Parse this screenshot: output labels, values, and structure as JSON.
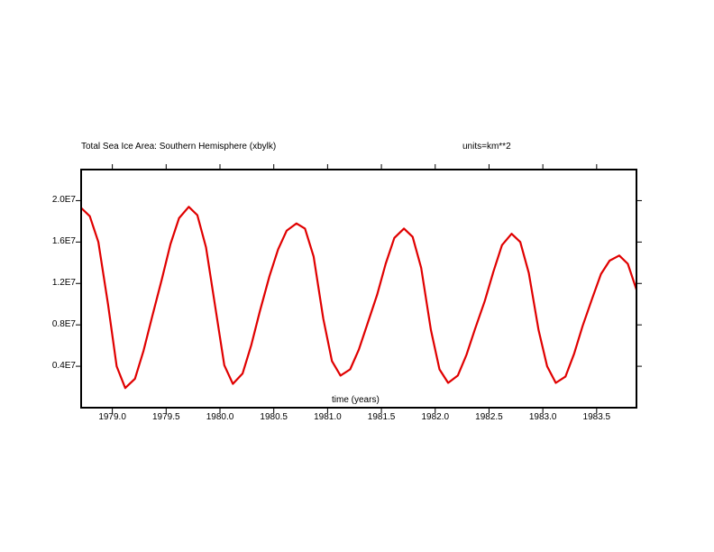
{
  "chart_data": {
    "type": "line",
    "title": "Total Sea Ice Area: Southern Hemisphere (xbylk)",
    "units_label": "units=km**2",
    "xlabel": "time (years)",
    "ylabel": "",
    "xlim": [
      1978.71,
      1983.87
    ],
    "ylim": [
      0.0,
      23000000.0
    ],
    "x_ticks": [
      1979.0,
      1979.5,
      1980.0,
      1980.5,
      1981.0,
      1981.5,
      1982.0,
      1982.5,
      1983.0,
      1983.5
    ],
    "x_tick_labels": [
      "1979.0",
      "1979.5",
      "1980.0",
      "1980.5",
      "1981.0",
      "1981.5",
      "1982.0",
      "1982.5",
      "1983.0",
      "1983.5"
    ],
    "y_ticks": [
      4000000,
      8000000,
      12000000,
      16000000,
      20000000
    ],
    "y_tick_labels": [
      "0.4E7",
      "0.8E7",
      "1.2E7",
      "1.6E7",
      "2.0E7"
    ],
    "grid": false,
    "line_color": "#e00000",
    "series": [
      {
        "x": [
          1978.71,
          1978.79,
          1978.87,
          1978.96,
          1979.04,
          1979.12,
          1979.21,
          1979.29,
          1979.37,
          1979.46,
          1979.54,
          1979.62,
          1979.71,
          1979.79,
          1979.87,
          1979.96,
          1980.04,
          1980.12,
          1980.21,
          1980.29,
          1980.37,
          1980.46,
          1980.54,
          1980.62,
          1980.71,
          1980.79,
          1980.87,
          1980.96,
          1981.04,
          1981.12,
          1981.21,
          1981.29,
          1981.37,
          1981.46,
          1981.54,
          1981.62,
          1981.71,
          1981.79,
          1981.87,
          1981.96,
          1982.04,
          1982.12,
          1982.21,
          1982.29,
          1982.37,
          1982.46,
          1982.54,
          1982.62,
          1982.71,
          1982.79,
          1982.87,
          1982.96,
          1983.04,
          1983.12,
          1983.21,
          1983.29,
          1983.37,
          1983.46,
          1983.54,
          1983.62,
          1983.71,
          1983.79,
          1983.87
        ],
        "y": [
          19300000,
          18500000,
          16000000,
          10000000,
          4000000,
          1900000,
          2800000,
          5500000,
          8800000,
          12400000,
          15800000,
          18300000,
          19400000,
          18600000,
          15500000,
          9500000,
          4100000,
          2300000,
          3300000,
          6000000,
          9300000,
          12700000,
          15300000,
          17100000,
          17800000,
          17300000,
          14600000,
          8600000,
          4500000,
          3100000,
          3700000,
          5600000,
          8100000,
          10900000,
          13900000,
          16400000,
          17300000,
          16500000,
          13500000,
          7500000,
          3700000,
          2400000,
          3100000,
          5100000,
          7600000,
          10300000,
          13100000,
          15700000,
          16800000,
          16000000,
          13000000,
          7500000,
          4000000,
          2400000,
          3000000,
          5200000,
          7900000,
          10600000,
          12900000,
          14200000,
          14700000,
          13900000,
          11400000
        ]
      }
    ]
  }
}
